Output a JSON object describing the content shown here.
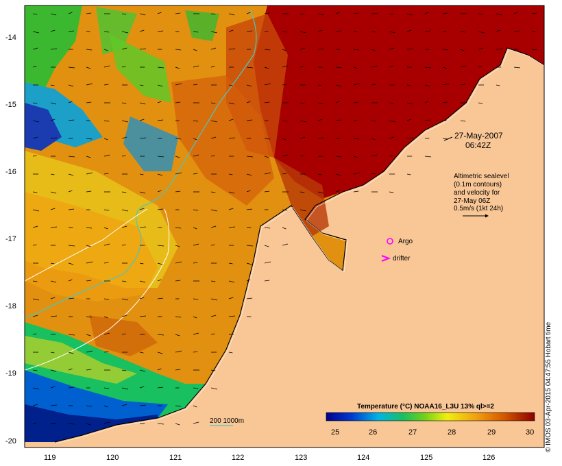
{
  "map": {
    "date_label": "27-May-2007",
    "time_label": "06:42Z",
    "altimetry_lines": [
      "Altimetric sealevel",
      "(0.1m contours)",
      "and velocity for",
      "27-May 06Z",
      "0.5m/s (1kt 24h)"
    ],
    "legend": {
      "argo": "Argo",
      "drifter": "drifter"
    },
    "bathymetry_label": "200  1000m",
    "colorbar_title": "Temperature (°C) NOAA16_L3U 13% ql>=2",
    "colorbar_ticks": [
      "25",
      "26",
      "27",
      "28",
      "29",
      "30"
    ],
    "lat_ticks": [
      "-14",
      "-15",
      "-16",
      "-17",
      "-18",
      "-19",
      "-20"
    ],
    "lon_ticks": [
      "119",
      "120",
      "121",
      "122",
      "123",
      "124",
      "125",
      "126"
    ],
    "credit": "© IMOS 03-Apr-2015 04:47:55 Hobart time"
  },
  "colors": {
    "land": "#f9c696",
    "warm": "#a80000",
    "orange": "#e8900c",
    "contour_200": "#49c6c6"
  }
}
